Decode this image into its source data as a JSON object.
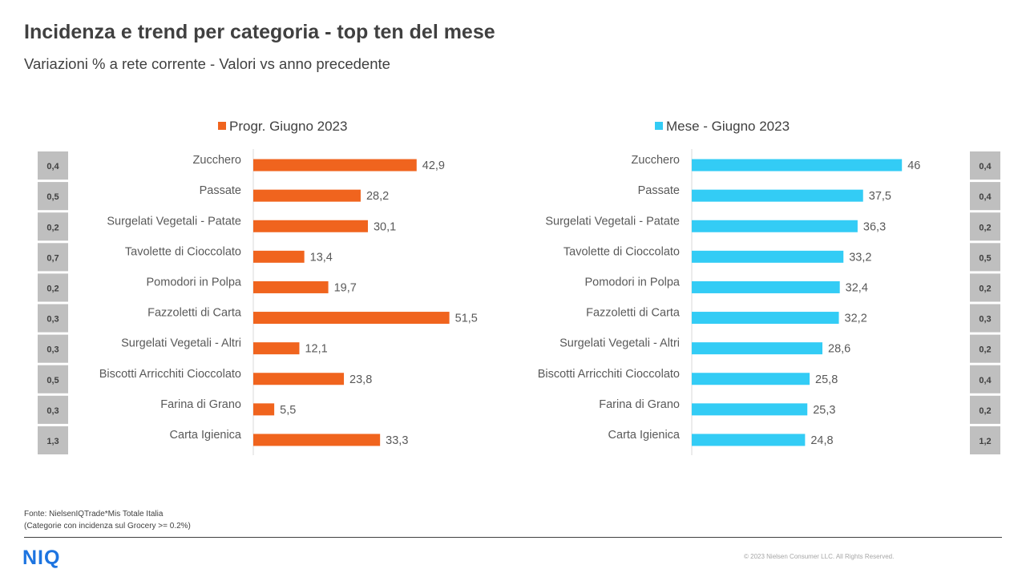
{
  "header": {
    "title": "Incidenza e trend per categoria - top ten del mese",
    "subtitle": "Variazioni % a rete corrente - Valori vs anno precedente"
  },
  "footer": {
    "source_line1": "Fonte: NielsenIQTrade*Mis Totale Italia",
    "source_line2": "(Categorie con incidenza sul Grocery >= 0.2%)",
    "logo": "NIQ",
    "copyright": "© 2023 Nielsen Consumer LLC. All Rights Reserved."
  },
  "chart_data": [
    {
      "type": "bar",
      "orientation": "horizontal",
      "categories": [
        "Zucchero",
        "Passate",
        "Surgelati Vegetali - Patate",
        "Tavolette di Cioccolato",
        "Pomodori in Polpa",
        "Fazzoletti di Carta",
        "Surgelati Vegetali - Altri",
        "Biscotti Arricchiti Cioccolato",
        "Farina di Grano",
        "Carta Igienica"
      ],
      "series": [
        {
          "name": "Progr. Giugno 2023",
          "color": "#f0641e",
          "values": [
            42.9,
            28.2,
            30.1,
            13.4,
            19.7,
            51.5,
            12.1,
            23.8,
            5.5,
            33.3
          ],
          "labels": [
            "42,9",
            "28,2",
            "30,1",
            "13,4",
            "19,7",
            "51,5",
            "12,1",
            "23,8",
            "5,5",
            "33,3"
          ]
        }
      ],
      "incidenza": [
        "0,4",
        "0,5",
        "0,2",
        "0,7",
        "0,2",
        "0,3",
        "0,3",
        "0,5",
        "0,3",
        "1,3"
      ],
      "legend": "top"
    },
    {
      "type": "bar",
      "orientation": "horizontal",
      "categories": [
        "Zucchero",
        "Passate",
        "Surgelati Vegetali - Patate",
        "Tavolette di Cioccolato",
        "Pomodori in Polpa",
        "Fazzoletti di Carta",
        "Surgelati Vegetali - Altri",
        "Biscotti Arricchiti Cioccolato",
        "Farina di Grano",
        "Carta Igienica"
      ],
      "series": [
        {
          "name": "Mese - Giugno 2023",
          "color": "#33ccf5",
          "values": [
            46,
            37.5,
            36.3,
            33.2,
            32.4,
            32.2,
            28.6,
            25.8,
            25.3,
            24.8
          ],
          "labels": [
            "46",
            "37,5",
            "36,3",
            "33,2",
            "32,4",
            "32,2",
            "28,6",
            "25,8",
            "25,3",
            "24,8"
          ]
        }
      ],
      "incidenza": [
        "0,4",
        "0,4",
        "0,2",
        "0,5",
        "0,2",
        "0,3",
        "0,2",
        "0,4",
        "0,2",
        "1,2"
      ],
      "legend": "top"
    }
  ]
}
